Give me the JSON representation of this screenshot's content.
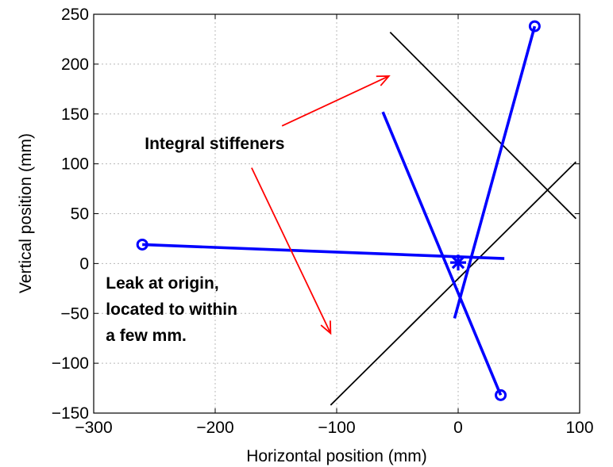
{
  "chart_data": {
    "type": "line",
    "xlabel": "Horizontal position (mm)",
    "ylabel": "Vertical position (mm)",
    "xlim": [
      -300,
      100
    ],
    "ylim": [
      -150,
      250
    ],
    "x_ticks": [
      "-300",
      "-200",
      "-100",
      "0",
      "100"
    ],
    "y_ticks": [
      "250",
      "200",
      "150",
      "100",
      "50",
      "0",
      "-50",
      "-100",
      "-150"
    ],
    "x_tick_values": [
      -300,
      -200,
      -100,
      0,
      100
    ],
    "y_tick_values": [
      250,
      200,
      150,
      100,
      50,
      0,
      -50,
      -100,
      -150
    ],
    "grid": true,
    "colors": {
      "sensor": "#0000ff",
      "stiffener": "#000000",
      "arrow": "#ff0000"
    },
    "series": [
      {
        "kind": "sensor",
        "points": [
          [
            -260,
            19
          ],
          [
            38,
            5
          ]
        ],
        "marker": "circle-start"
      },
      {
        "kind": "sensor",
        "points": [
          [
            63,
            238
          ],
          [
            -3,
            -55
          ]
        ],
        "marker": "circle-start"
      },
      {
        "kind": "sensor",
        "points": [
          [
            35,
            -132
          ],
          [
            -62,
            152
          ]
        ],
        "marker": "circle-start"
      },
      {
        "kind": "stiffener",
        "points": [
          [
            -105,
            -142
          ],
          [
            97,
            102
          ]
        ]
      },
      {
        "kind": "stiffener",
        "points": [
          [
            -56,
            232
          ],
          [
            97,
            45
          ]
        ]
      }
    ],
    "leak": {
      "x": 0,
      "y": 1,
      "marker": "star"
    },
    "arrows": [
      {
        "from": [
          -145,
          138
        ],
        "to": [
          -57,
          188
        ]
      },
      {
        "from": [
          -170,
          96
        ],
        "to": [
          -105,
          -70
        ]
      }
    ],
    "annotations": [
      {
        "id": "stiffeners",
        "lines": [
          "Integral stiffeners"
        ],
        "anchor": [
          -258,
          115
        ]
      },
      {
        "id": "leak",
        "lines": [
          "Leak at origin,",
          "located to within",
          "a few mm."
        ],
        "anchor": [
          -290,
          -25
        ]
      }
    ]
  }
}
